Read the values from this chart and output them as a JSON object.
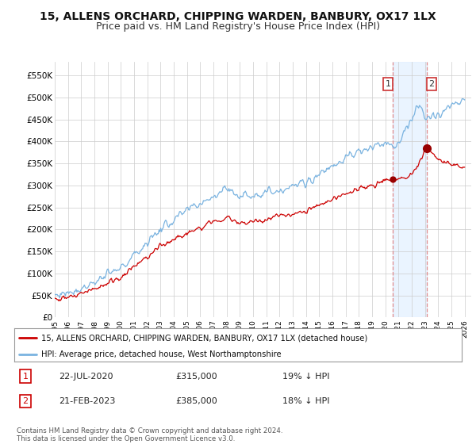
{
  "title": "15, ALLENS ORCHARD, CHIPPING WARDEN, BANBURY, OX17 1LX",
  "subtitle": "Price paid vs. HM Land Registry's House Price Index (HPI)",
  "ylabel_ticks": [
    "£0",
    "£50K",
    "£100K",
    "£150K",
    "£200K",
    "£250K",
    "£300K",
    "£350K",
    "£400K",
    "£450K",
    "£500K",
    "£550K"
  ],
  "ytick_values": [
    0,
    50000,
    100000,
    150000,
    200000,
    250000,
    300000,
    350000,
    400000,
    450000,
    500000,
    550000
  ],
  "ylim": [
    0,
    580000
  ],
  "x_start_year": 1995,
  "x_end_year": 2026,
  "hpi_color": "#7ab3e0",
  "price_color": "#cc0000",
  "marker1_date": "22-JUL-2020",
  "marker1_price": 315000,
  "marker1_label": "19% ↓ HPI",
  "marker2_date": "21-FEB-2023",
  "marker2_price": 385000,
  "marker2_label": "18% ↓ HPI",
  "legend_property": "15, ALLENS ORCHARD, CHIPPING WARDEN, BANBURY, OX17 1LX (detached house)",
  "legend_hpi": "HPI: Average price, detached house, West Northamptonshire",
  "footer": "Contains HM Land Registry data © Crown copyright and database right 2024.\nThis data is licensed under the Open Government Licence v3.0.",
  "background_color": "#ffffff",
  "grid_color": "#cccccc",
  "title_fontsize": 10,
  "subtitle_fontsize": 9
}
